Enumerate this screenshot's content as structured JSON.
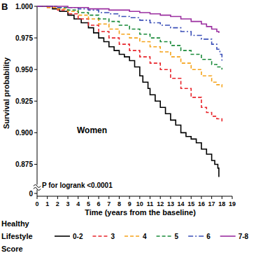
{
  "chart_data": {
    "type": "step",
    "panel_label": "B",
    "y_label": "Survival probability",
    "x_label": "Time (years from the baseline)",
    "annotations": [
      "Women",
      "P for logrank <0.0001"
    ],
    "legend_title": "Healthy Lifestyle Score",
    "legend": "bottom",
    "grid": false,
    "xlim": [
      0,
      19
    ],
    "xticks": [
      0,
      1,
      2,
      3,
      4,
      5,
      6,
      7,
      8,
      9,
      10,
      11,
      12,
      13,
      14,
      15,
      16,
      17,
      18,
      19
    ],
    "ylim": [
      0,
      1
    ],
    "y_break": [
      0,
      0.8625
    ],
    "yticks": [
      {
        "value": 1,
        "label": "1.000"
      },
      0.975,
      {
        "value": 0.95,
        "label": "0.950"
      },
      0.925,
      {
        "value": 0.9,
        "label": "0.900"
      },
      0.875,
      0
    ],
    "series": [
      {
        "name": "0-2",
        "color": "#000000",
        "line_style": "solid",
        "x": [
          0,
          1.5,
          2.2,
          3,
          3.6,
          4.3,
          5,
          5.5,
          6,
          6.5,
          7,
          7.5,
          8,
          8.5,
          9,
          9.5,
          10,
          10.3,
          10.8,
          11,
          11.5,
          12,
          12.5,
          13,
          13.5,
          14,
          14.5,
          15,
          15.5,
          16,
          16.5,
          17,
          17.3,
          17.6,
          17.7
        ],
        "values": [
          1,
          0.998,
          0.996,
          0.993,
          0.99,
          0.987,
          0.983,
          0.979,
          0.975,
          0.972,
          0.968,
          0.965,
          0.962,
          0.96,
          0.957,
          0.952,
          0.945,
          0.94,
          0.935,
          0.93,
          0.925,
          0.92,
          0.915,
          0.91,
          0.906,
          0.9,
          0.897,
          0.895,
          0.892,
          0.887,
          0.883,
          0.878,
          0.875,
          0.872,
          0.865
        ]
      },
      {
        "name": "3",
        "color": "#e8242a",
        "line_style": "dashed",
        "x": [
          0,
          1,
          2,
          3,
          4,
          5,
          6,
          7,
          8,
          9,
          10,
          11,
          12,
          13,
          14,
          15,
          16,
          16.5,
          17,
          17.5,
          18
        ],
        "values": [
          1,
          0.999,
          0.997,
          0.994,
          0.99,
          0.985,
          0.98,
          0.975,
          0.97,
          0.965,
          0.96,
          0.955,
          0.95,
          0.943,
          0.935,
          0.928,
          0.92,
          0.916,
          0.913,
          0.911,
          0.909
        ]
      },
      {
        "name": "4",
        "color": "#f5a31a",
        "line_style": "dashed",
        "x": [
          0,
          1,
          2,
          3,
          4,
          5,
          6,
          7,
          8,
          9,
          10,
          11,
          12,
          13,
          14,
          15,
          16,
          17,
          17.5,
          18
        ],
        "values": [
          1,
          0.999,
          0.998,
          0.996,
          0.993,
          0.99,
          0.986,
          0.982,
          0.978,
          0.975,
          0.972,
          0.968,
          0.964,
          0.96,
          0.955,
          0.95,
          0.945,
          0.94,
          0.938,
          0.936
        ]
      },
      {
        "name": "5",
        "color": "#1a8a3a",
        "line_style": "dashed",
        "x": [
          0,
          1,
          2,
          3,
          4,
          5,
          6,
          7,
          8,
          9,
          10,
          11,
          12,
          13,
          14,
          15,
          16,
          17,
          17.5,
          18
        ],
        "values": [
          1,
          1,
          0.999,
          0.997,
          0.995,
          0.993,
          0.99,
          0.988,
          0.985,
          0.982,
          0.978,
          0.975,
          0.972,
          0.969,
          0.965,
          0.962,
          0.958,
          0.954,
          0.952,
          0.95
        ]
      },
      {
        "name": "6",
        "color": "#3b4fb8",
        "line_style": "dashdot",
        "x": [
          0,
          2,
          3,
          4,
          5,
          6,
          7,
          8,
          9,
          10,
          11,
          12,
          13,
          14,
          15,
          16,
          17,
          17.5,
          17.8,
          18
        ],
        "values": [
          1,
          0.999,
          0.999,
          0.998,
          0.997,
          0.995,
          0.994,
          0.992,
          0.991,
          0.989,
          0.987,
          0.985,
          0.983,
          0.98,
          0.977,
          0.974,
          0.97,
          0.966,
          0.962,
          0.957
        ]
      },
      {
        "name": "7-8",
        "color": "#9b2fa0",
        "line_style": "solid",
        "x": [
          0,
          3,
          5,
          7,
          8,
          9,
          10,
          11,
          12,
          13,
          14,
          15,
          16,
          16.5,
          17,
          17.5,
          17.7
        ],
        "values": [
          1,
          0.999,
          0.998,
          0.997,
          0.997,
          0.996,
          0.995,
          0.994,
          0.993,
          0.992,
          0.99,
          0.988,
          0.986,
          0.984,
          0.982,
          0.98,
          0.979
        ]
      }
    ]
  }
}
